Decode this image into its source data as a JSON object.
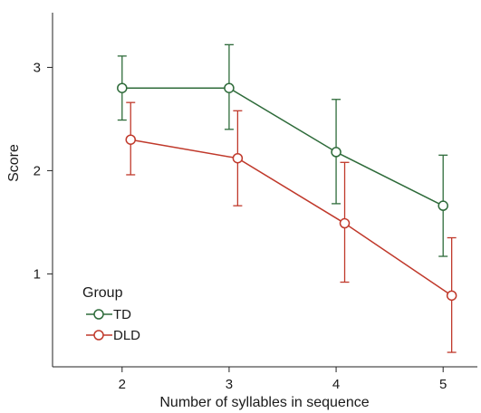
{
  "chart_data": {
    "type": "line",
    "xlabel": "Number of syllables in sequence",
    "ylabel": "Score",
    "x": [
      2,
      3,
      4,
      5
    ],
    "x_ticks": [
      "2",
      "3",
      "4",
      "5"
    ],
    "y_ticks": [
      "1",
      "2",
      "3"
    ],
    "xlim": [
      1.35,
      5.32
    ],
    "ylim": [
      0.1,
      3.53
    ],
    "grid": false,
    "legend": {
      "title": "Group",
      "placement": "bottom-left"
    },
    "series": [
      {
        "name": "TD",
        "color": "#2e6b3a",
        "x": [
          2,
          3,
          4,
          5
        ],
        "values": [
          2.8,
          2.8,
          2.18,
          1.66
        ],
        "err_low": [
          2.49,
          2.4,
          1.68,
          1.17
        ],
        "err_high": [
          3.11,
          3.22,
          2.69,
          2.15
        ]
      },
      {
        "name": "DLD",
        "color": "#c0392b",
        "x": [
          2.08,
          3.08,
          4.08,
          5.08
        ],
        "values": [
          2.3,
          2.12,
          1.49,
          0.79
        ],
        "err_low": [
          1.96,
          1.66,
          0.92,
          0.24
        ],
        "err_high": [
          2.66,
          2.58,
          2.08,
          1.35
        ]
      }
    ]
  }
}
